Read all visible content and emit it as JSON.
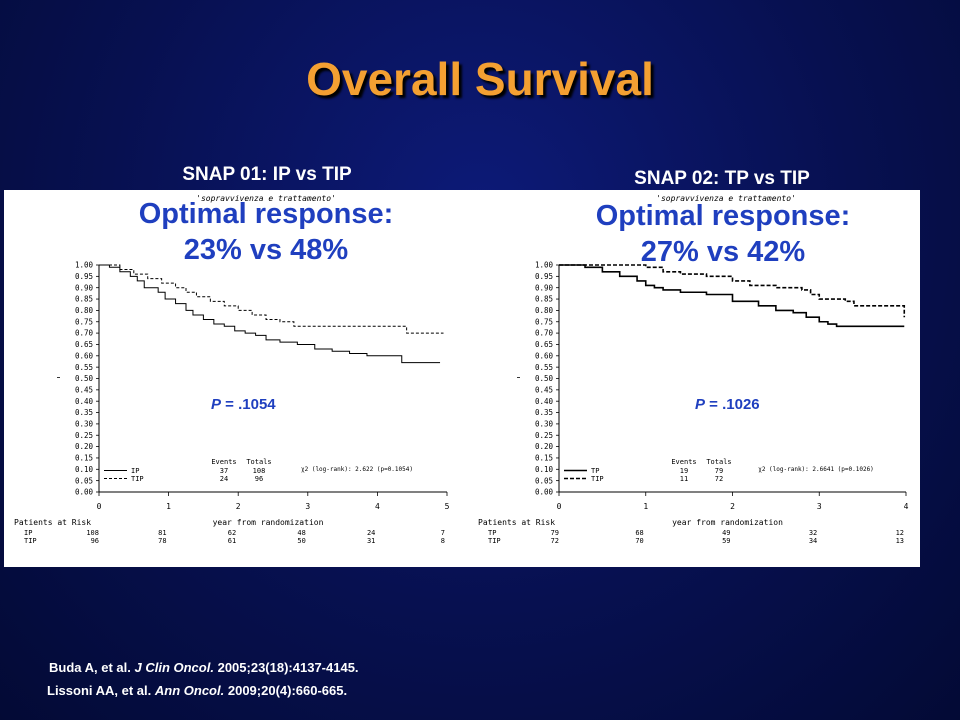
{
  "title": "Overall Survival",
  "citations": [
    {
      "authors": "Buda A, et al.",
      "journal": "J Clin Oncol.",
      "ref": "2005;23(18):4137-4145."
    },
    {
      "authors": "Lissoni AA, et al.",
      "journal": "Ann Oncol.",
      "ref": "2009;20(4):660-665."
    }
  ],
  "chart_data": [
    {
      "type": "line",
      "heading": "SNAP 01: IP vs TIP",
      "figure_caption": "'sopravvivenza e trattamento'",
      "response_line1": "Optimal response:",
      "response_line2": "23% vs 48%",
      "p_label": "P",
      "p_value": " = .1054",
      "xlabel": "year from randomization",
      "xlim": [
        0,
        5
      ],
      "ylim": [
        0,
        1
      ],
      "xticks": [
        "0",
        "1",
        "2",
        "3",
        "4",
        "5"
      ],
      "yticks": [
        "0.00",
        "0.05",
        "0.10",
        "0.15",
        "0.20",
        "0.25",
        "0.30",
        "0.35",
        "0.40",
        "0.45",
        "0.50",
        "0.55",
        "0.60",
        "0.65",
        "0.70",
        "0.75",
        "0.80",
        "0.85",
        "0.90",
        "0.95",
        "1.00"
      ],
      "series": [
        {
          "name": "IP",
          "style": "solid",
          "points": [
            [
              0,
              1.0
            ],
            [
              0.15,
              0.99
            ],
            [
              0.3,
              0.97
            ],
            [
              0.45,
              0.95
            ],
            [
              0.55,
              0.93
            ],
            [
              0.65,
              0.9
            ],
            [
              0.85,
              0.88
            ],
            [
              0.95,
              0.85
            ],
            [
              1.1,
              0.83
            ],
            [
              1.25,
              0.8
            ],
            [
              1.35,
              0.78
            ],
            [
              1.5,
              0.76
            ],
            [
              1.65,
              0.74
            ],
            [
              1.8,
              0.73
            ],
            [
              1.95,
              0.71
            ],
            [
              2.1,
              0.7
            ],
            [
              2.25,
              0.69
            ],
            [
              2.4,
              0.67
            ],
            [
              2.6,
              0.66
            ],
            [
              2.85,
              0.65
            ],
            [
              3.1,
              0.63
            ],
            [
              3.35,
              0.62
            ],
            [
              3.6,
              0.61
            ],
            [
              3.85,
              0.6
            ],
            [
              4.3,
              0.6
            ],
            [
              4.35,
              0.57
            ],
            [
              4.9,
              0.57
            ]
          ]
        },
        {
          "name": "TIP",
          "style": "dashed",
          "points": [
            [
              0,
              1.0
            ],
            [
              0.3,
              0.98
            ],
            [
              0.5,
              0.96
            ],
            [
              0.7,
              0.94
            ],
            [
              0.9,
              0.92
            ],
            [
              1.1,
              0.9
            ],
            [
              1.25,
              0.88
            ],
            [
              1.4,
              0.86
            ],
            [
              1.6,
              0.84
            ],
            [
              1.8,
              0.82
            ],
            [
              2.0,
              0.8
            ],
            [
              2.2,
              0.78
            ],
            [
              2.4,
              0.76
            ],
            [
              2.6,
              0.75
            ],
            [
              2.8,
              0.73
            ],
            [
              3.5,
              0.73
            ],
            [
              4.4,
              0.73
            ],
            [
              4.42,
              0.7
            ],
            [
              4.95,
              0.7
            ]
          ]
        }
      ],
      "legend": {
        "col_events": "Events",
        "col_totals": "Totals",
        "rows": [
          {
            "name": "IP",
            "events": "37",
            "totals": "108"
          },
          {
            "name": "TIP",
            "events": "24",
            "totals": "96"
          }
        ]
      },
      "logrank": "χ2 (log-rank): 2.622 (p=0.1054)",
      "risk_title": "Patients at Risk",
      "risk_rows": [
        {
          "name": "IP",
          "values": [
            "108",
            "81",
            "62",
            "48",
            "24",
            "7"
          ]
        },
        {
          "name": "TIP",
          "values": [
            "96",
            "78",
            "61",
            "50",
            "31",
            "8"
          ]
        }
      ]
    },
    {
      "type": "line",
      "heading": "SNAP 02: TP vs TIP",
      "figure_caption": "'sopravvivenza e trattamento'",
      "response_line1": "Optimal response:",
      "response_line2": "27% vs 42%",
      "p_label": "P",
      "p_value": " = .1026",
      "xlabel": "year from randomization",
      "xlim": [
        0,
        4
      ],
      "ylim": [
        0,
        1
      ],
      "xticks": [
        "0",
        "1",
        "2",
        "3",
        "4"
      ],
      "yticks": [
        "0.00",
        "0.05",
        "0.10",
        "0.15",
        "0.20",
        "0.25",
        "0.30",
        "0.35",
        "0.40",
        "0.45",
        "0.50",
        "0.55",
        "0.60",
        "0.65",
        "0.70",
        "0.75",
        "0.80",
        "0.85",
        "0.90",
        "0.95",
        "1.00"
      ],
      "series": [
        {
          "name": "TP",
          "style": "solid",
          "points": [
            [
              0,
              1.0
            ],
            [
              0.3,
              0.99
            ],
            [
              0.5,
              0.97
            ],
            [
              0.7,
              0.95
            ],
            [
              0.9,
              0.93
            ],
            [
              1.0,
              0.91
            ],
            [
              1.1,
              0.9
            ],
            [
              1.2,
              0.89
            ],
            [
              1.4,
              0.88
            ],
            [
              1.7,
              0.87
            ],
            [
              2.0,
              0.84
            ],
            [
              2.3,
              0.82
            ],
            [
              2.5,
              0.8
            ],
            [
              2.7,
              0.79
            ],
            [
              2.85,
              0.77
            ],
            [
              3.0,
              0.75
            ],
            [
              3.1,
              0.74
            ],
            [
              3.2,
              0.73
            ],
            [
              3.5,
              0.73
            ],
            [
              3.98,
              0.73
            ]
          ]
        },
        {
          "name": "TIP",
          "style": "dashed",
          "points": [
            [
              0,
              1.0
            ],
            [
              0.8,
              1.0
            ],
            [
              1.0,
              0.99
            ],
            [
              1.2,
              0.97
            ],
            [
              1.4,
              0.96
            ],
            [
              1.7,
              0.95
            ],
            [
              2.0,
              0.93
            ],
            [
              2.2,
              0.91
            ],
            [
              2.5,
              0.9
            ],
            [
              2.8,
              0.89
            ],
            [
              2.9,
              0.87
            ],
            [
              3.0,
              0.85
            ],
            [
              3.3,
              0.84
            ],
            [
              3.4,
              0.82
            ],
            [
              3.98,
              0.82
            ],
            [
              3.98,
              0.77
            ]
          ]
        }
      ],
      "legend": {
        "col_events": "Events",
        "col_totals": "Totals",
        "rows": [
          {
            "name": "TP",
            "events": "19",
            "totals": "79"
          },
          {
            "name": "TIP",
            "events": "11",
            "totals": "72"
          }
        ]
      },
      "logrank": "χ2 (log-rank): 2.6641 (p=0.1026)",
      "risk_title": "Patients at Risk",
      "risk_rows": [
        {
          "name": "TP",
          "values": [
            "79",
            "68",
            "49",
            "32",
            "12"
          ]
        },
        {
          "name": "TIP",
          "values": [
            "72",
            "70",
            "59",
            "34",
            "13"
          ]
        }
      ]
    }
  ]
}
